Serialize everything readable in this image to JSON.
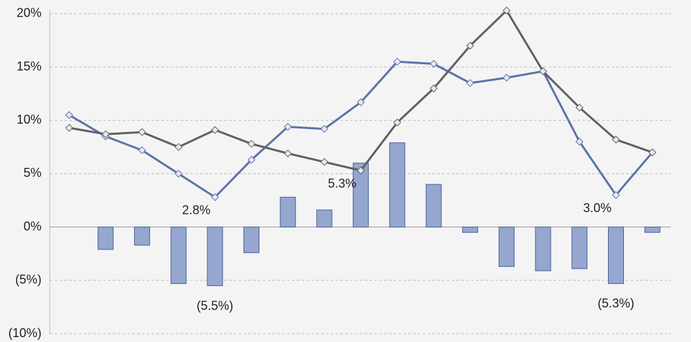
{
  "chart_data": {
    "type": "combo",
    "ylim": [
      -10,
      21
    ],
    "yticks": [
      {
        "value": 20,
        "label": "20%"
      },
      {
        "value": 15,
        "label": "15%"
      },
      {
        "value": 10,
        "label": "10%"
      },
      {
        "value": 5,
        "label": "5%"
      },
      {
        "value": 0,
        "label": "0%"
      },
      {
        "value": -5,
        "label": "(5%)"
      },
      {
        "value": -10,
        "label": "(10%)"
      }
    ],
    "grid": true,
    "series": [
      {
        "type": "bar",
        "color": "#95a6cf",
        "values": [
          null,
          -2.1,
          -1.7,
          -5.3,
          -5.5,
          -2.4,
          2.8,
          1.6,
          6.0,
          7.9,
          4.0,
          -0.5,
          -3.7,
          -4.1,
          -3.9,
          -5.3,
          -0.5
        ],
        "value_labels": [
          null,
          null,
          null,
          null,
          "(5.5%)",
          null,
          null,
          null,
          null,
          null,
          null,
          null,
          null,
          null,
          null,
          "(5.3%)",
          null
        ]
      },
      {
        "type": "line",
        "color": "#5b73a8",
        "values": [
          10.5,
          8.5,
          7.2,
          5.0,
          2.8,
          6.3,
          9.4,
          9.2,
          11.7,
          15.5,
          15.3,
          13.5,
          14.0,
          14.6,
          8.0,
          3.0,
          7.0
        ],
        "value_labels": [
          null,
          null,
          null,
          null,
          "2.8%",
          null,
          null,
          null,
          null,
          null,
          null,
          null,
          null,
          null,
          null,
          "3.0%",
          null
        ]
      },
      {
        "type": "line",
        "color": "#606060",
        "values": [
          9.3,
          8.7,
          8.9,
          7.5,
          9.1,
          7.8,
          6.9,
          6.1,
          5.3,
          9.8,
          13.0,
          17.0,
          20.3,
          14.6,
          11.2,
          8.2,
          7.0
        ],
        "value_labels": [
          null,
          null,
          null,
          null,
          null,
          null,
          null,
          null,
          "5.3%",
          null,
          null,
          null,
          null,
          null,
          null,
          null,
          null
        ]
      }
    ]
  }
}
